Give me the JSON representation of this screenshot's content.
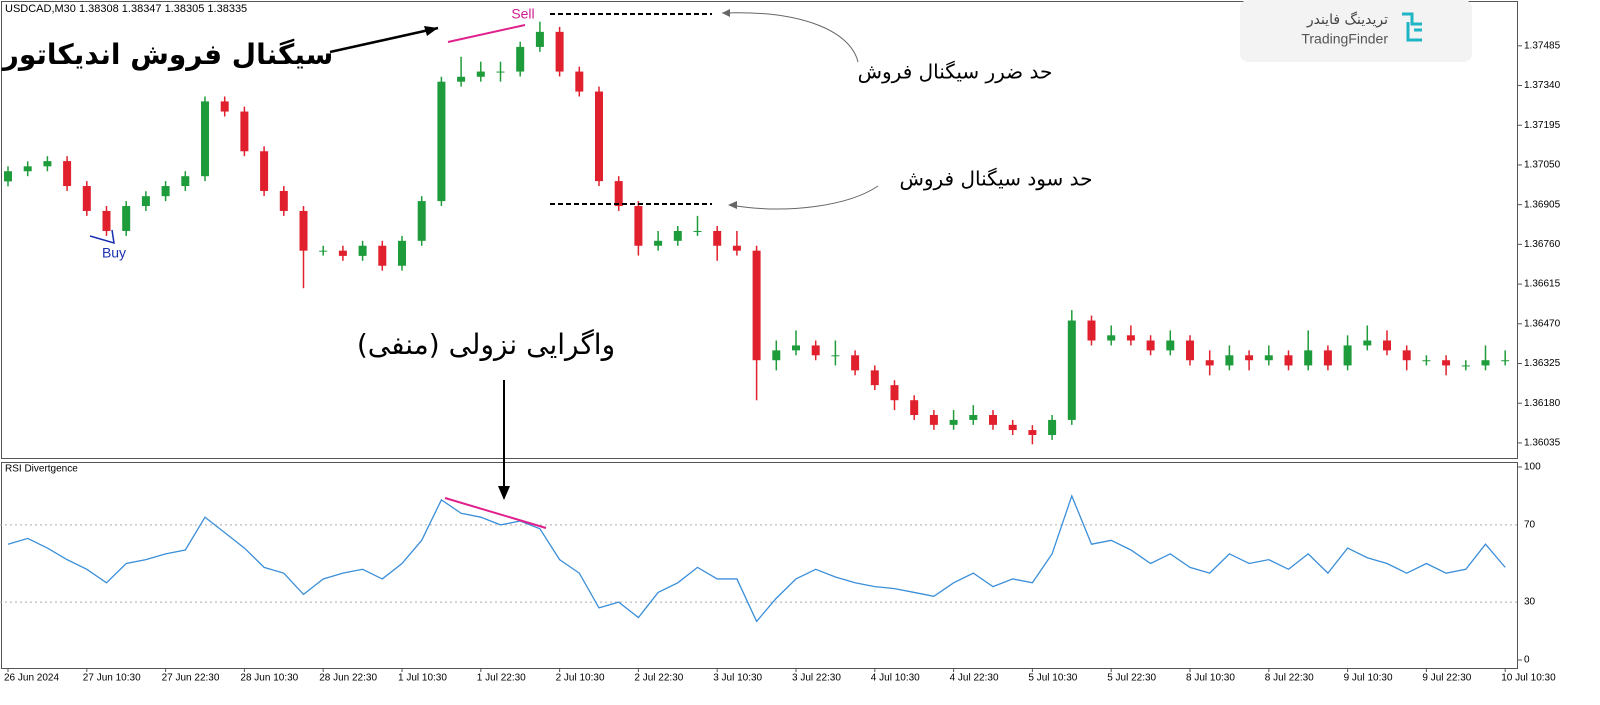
{
  "chart_data": [
    {
      "type": "candlestick",
      "header": "USDCAD,M30  1.38308 1.38347 1.38305 1.38335",
      "categories": [
        "26 Jun 2024",
        null,
        null,
        null,
        "27 Jun 10:30",
        null,
        null,
        null,
        "27 Jun 22:30",
        null,
        null,
        null,
        "28 Jun 10:30",
        null,
        null,
        null,
        "28 Jun 22:30",
        null,
        null,
        null,
        "1 Jul 10:30",
        null,
        null,
        null,
        "1 Jul 22:30",
        null,
        null,
        null,
        "2 Jul 10:30",
        null,
        null,
        null,
        "2 Jul 22:30",
        null,
        null,
        null,
        "3 Jul 10:30",
        null,
        null,
        null,
        "3 Jul 22:30",
        null,
        null,
        null,
        "4 Jul 10:30",
        null,
        null,
        null,
        "4 Jul 22:30",
        null,
        null,
        null,
        "5 Jul 10:30",
        null,
        null,
        null,
        "5 Jul 22:30",
        null,
        null,
        null,
        "8 Jul 10:30",
        null,
        null,
        null,
        "8 Jul 22:30",
        null,
        null,
        null,
        "9 Jul 10:30",
        null,
        null,
        null,
        "9 Jul 22:30",
        null,
        null,
        null,
        "10 Jul 10:30"
      ],
      "open": [
        1.3699,
        1.37027,
        1.37045,
        1.37064,
        1.36973,
        1.36882,
        1.36809,
        1.369,
        1.36936,
        1.36973,
        1.37009,
        1.37282,
        1.37245,
        1.371,
        1.36955,
        1.36882,
        1.36737,
        1.36737,
        1.36718,
        1.36755,
        1.36682,
        1.36773,
        1.36918,
        1.37354,
        1.37372,
        1.37391,
        1.37391,
        1.37481,
        1.37536,
        1.37391,
        1.37318,
        1.36991,
        1.369,
        1.36755,
        1.36773,
        1.36809,
        1.36809,
        1.36755,
        1.36737,
        1.36337,
        1.36373,
        1.36391,
        1.36355,
        1.36355,
        1.363,
        1.36246,
        1.36191,
        1.36137,
        1.36101,
        1.36119,
        1.36137,
        1.36101,
        1.36082,
        1.36064,
        1.36119,
        1.36482,
        1.36409,
        1.36428,
        1.36409,
        1.36373,
        1.36409,
        1.36337,
        1.36318,
        1.36355,
        1.36337,
        1.36355,
        1.36318,
        1.36373,
        1.36318,
        1.36391,
        1.36409,
        1.36373,
        1.36337,
        1.36337,
        1.36318,
        1.36318,
        1.36337
      ],
      "high": [
        1.37045,
        1.37063,
        1.37082,
        1.37082,
        1.36991,
        1.369,
        1.36918,
        1.36954,
        1.36991,
        1.37027,
        1.373,
        1.373,
        1.37263,
        1.37118,
        1.36973,
        1.369,
        1.36755,
        1.36755,
        1.36773,
        1.36773,
        1.36791,
        1.36936,
        1.37372,
        1.37445,
        1.37427,
        1.37427,
        1.375,
        1.37573,
        1.37554,
        1.37409,
        1.37336,
        1.37009,
        1.36918,
        1.36809,
        1.36827,
        1.36864,
        1.36827,
        1.36809,
        1.36755,
        1.36409,
        1.36446,
        1.36409,
        1.36409,
        1.36373,
        1.36318,
        1.36264,
        1.36209,
        1.36155,
        1.36155,
        1.36173,
        1.36155,
        1.36119,
        1.361,
        1.36137,
        1.3652,
        1.365,
        1.36464,
        1.36464,
        1.36428,
        1.36446,
        1.36428,
        1.36373,
        1.36391,
        1.36373,
        1.36391,
        1.36373,
        1.36446,
        1.36391,
        1.36428,
        1.36464,
        1.36446,
        1.36391,
        1.36355,
        1.36355,
        1.36337,
        1.36391,
        1.36373
      ],
      "low": [
        1.36972,
        1.37009,
        1.37027,
        1.36955,
        1.36864,
        1.36791,
        1.36791,
        1.36882,
        1.36918,
        1.36955,
        1.36991,
        1.37227,
        1.37082,
        1.36937,
        1.36864,
        1.366,
        1.36719,
        1.367,
        1.367,
        1.36664,
        1.36664,
        1.36755,
        1.369,
        1.37336,
        1.37354,
        1.37354,
        1.37373,
        1.37463,
        1.37373,
        1.373,
        1.36973,
        1.36882,
        1.36719,
        1.36737,
        1.36755,
        1.36791,
        1.367,
        1.36719,
        1.36191,
        1.363,
        1.36355,
        1.36337,
        1.36318,
        1.36282,
        1.36228,
        1.36155,
        1.36119,
        1.36083,
        1.36083,
        1.36101,
        1.36083,
        1.36064,
        1.3603,
        1.36046,
        1.36101,
        1.36391,
        1.36391,
        1.36391,
        1.36355,
        1.36355,
        1.36318,
        1.36282,
        1.363,
        1.363,
        1.36318,
        1.363,
        1.363,
        1.363,
        1.363,
        1.36373,
        1.36355,
        1.363,
        1.36318,
        1.36282,
        1.363,
        1.363,
        1.36318
      ],
      "close": [
        1.37027,
        1.37045,
        1.37064,
        1.36973,
        1.36882,
        1.36809,
        1.369,
        1.36936,
        1.36973,
        1.37009,
        1.37282,
        1.37245,
        1.371,
        1.36955,
        1.36882,
        1.36737,
        1.36737,
        1.36718,
        1.36755,
        1.36682,
        1.36773,
        1.36918,
        1.37354,
        1.37372,
        1.37391,
        1.37391,
        1.37481,
        1.37536,
        1.37391,
        1.37318,
        1.36991,
        1.369,
        1.36755,
        1.36773,
        1.36809,
        1.36809,
        1.36755,
        1.36737,
        1.36337,
        1.36373,
        1.36391,
        1.36355,
        1.36355,
        1.363,
        1.36246,
        1.36191,
        1.36137,
        1.36101,
        1.36119,
        1.36137,
        1.36101,
        1.36082,
        1.36064,
        1.36119,
        1.36482,
        1.36409,
        1.36428,
        1.36409,
        1.36373,
        1.36409,
        1.36337,
        1.36318,
        1.36355,
        1.36337,
        1.36355,
        1.36318,
        1.36373,
        1.36318,
        1.36391,
        1.36409,
        1.36373,
        1.36337,
        1.36337,
        1.36318,
        1.36318,
        1.36337,
        1.36337
      ],
      "up_color": "#1e9b3a",
      "down_color": "#e0202c",
      "ylim": [
        1.3598,
        1.37645
      ],
      "yticks": [
        1.37485,
        {
          "value": 1.3734,
          "label": "1.37340"
        },
        1.37195,
        {
          "value": 1.3705,
          "label": "1.37050"
        },
        1.36905,
        {
          "value": 1.3676,
          "label": "1.36760"
        },
        1.36615,
        {
          "value": 1.3647,
          "label": "1.36470"
        },
        1.36325,
        {
          "value": 1.3618,
          "label": "1.36180"
        },
        1.36035
      ],
      "annotations": {
        "sell": "Sell",
        "buy": "Buy",
        "indicator_signal": "سیگنال فروش اندیکاتور",
        "stop_loss": "حد ضرر سیگنال فروش",
        "take_profit": "حد سود سیگنال فروش",
        "divergence": "واگرایی نزولی (منفی)"
      }
    },
    {
      "type": "line",
      "title": "RSI Divertgence",
      "color": "#3b8fd9",
      "values": [
        60,
        63,
        58,
        52,
        47,
        40,
        50,
        52,
        55,
        57,
        74,
        66,
        58,
        48,
        45,
        34,
        42,
        45,
        47,
        42,
        50,
        62,
        83,
        76,
        74,
        70,
        72,
        68,
        52,
        45,
        27,
        30,
        22,
        35,
        40,
        48,
        42,
        42,
        20,
        32,
        42,
        47,
        43,
        40,
        38,
        37,
        35,
        33,
        40,
        45,
        38,
        42,
        40,
        55,
        85,
        60,
        62,
        57,
        50,
        55,
        48,
        45,
        55,
        50,
        52,
        47,
        55,
        45,
        58,
        53,
        50,
        45,
        50,
        45,
        47,
        60,
        48
      ],
      "ylim": [
        0,
        100
      ],
      "yticks": [
        0,
        30,
        70,
        100
      ]
    }
  ],
  "logo": {
    "name_fa": "تریدینگ فایندر",
    "name": "TradingFinder"
  }
}
